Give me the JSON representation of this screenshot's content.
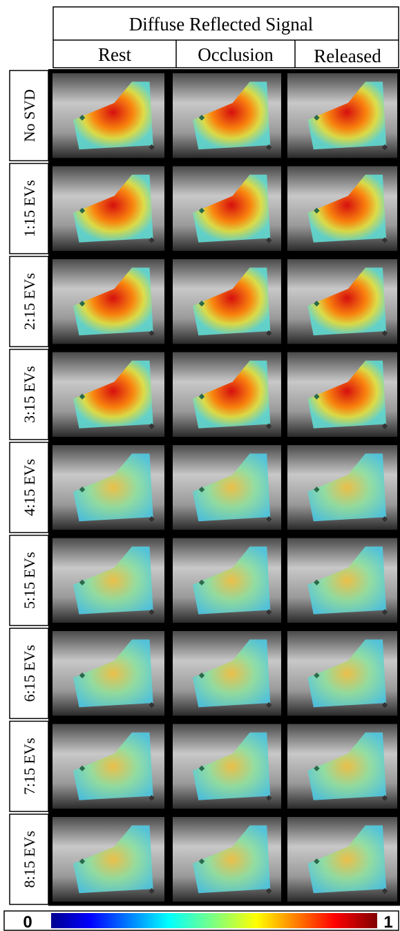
{
  "header": {
    "title": "Diffuse Reflected Signal",
    "columns": [
      "Rest",
      "Occlusion",
      "Released"
    ]
  },
  "rows": [
    "No SVD",
    "1:15 EVs",
    "2:15 EVs",
    "3:15 EVs",
    "4:15 EVs",
    "5:15 EVs",
    "6:15 EVs",
    "7:15 EVs",
    "8:15 EVs"
  ],
  "colorbar": {
    "min_label": "0",
    "max_label": "1"
  }
}
